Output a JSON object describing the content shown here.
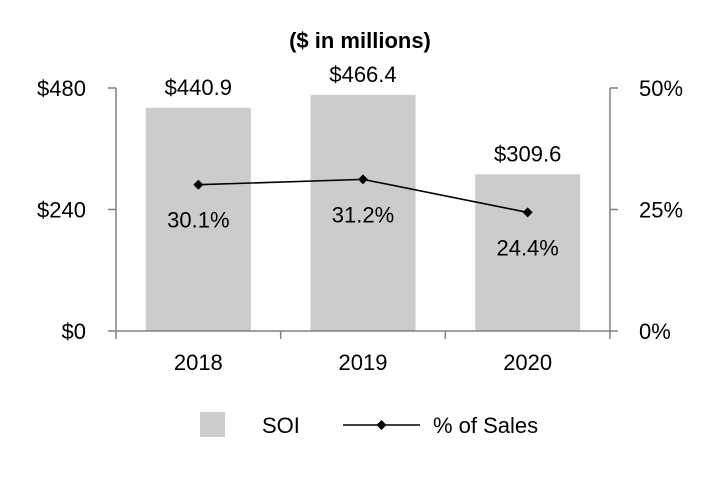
{
  "chart_data": {
    "type": "bar",
    "title": "($ in millions)",
    "categories": [
      "2018",
      "2019",
      "2020"
    ],
    "series": [
      {
        "name": "SOI",
        "axis": "left",
        "kind": "bar",
        "values": [
          440.9,
          466.4,
          309.6
        ],
        "labels": [
          "$440.9",
          "$466.4",
          "$309.6"
        ]
      },
      {
        "name": "% of Sales",
        "axis": "right",
        "kind": "line",
        "values": [
          30.1,
          31.2,
          24.4
        ],
        "labels": [
          "30.1%",
          "31.2%",
          "24.4%"
        ]
      }
    ],
    "y_left": {
      "ylim": [
        0,
        480
      ],
      "ticks": [
        0,
        240,
        480
      ],
      "tick_labels": [
        "$0",
        "$240",
        "$480"
      ]
    },
    "y_right": {
      "ylim": [
        0,
        50
      ],
      "ticks": [
        0,
        25,
        50
      ],
      "tick_labels": [
        "0%",
        "25%",
        "50%"
      ]
    },
    "grid": false,
    "legend": {
      "position": "bottom",
      "entries": [
        "SOI",
        "% of Sales"
      ]
    },
    "colors": {
      "bar": "#cccccc",
      "line": "#000000",
      "axis": "#808080"
    }
  }
}
